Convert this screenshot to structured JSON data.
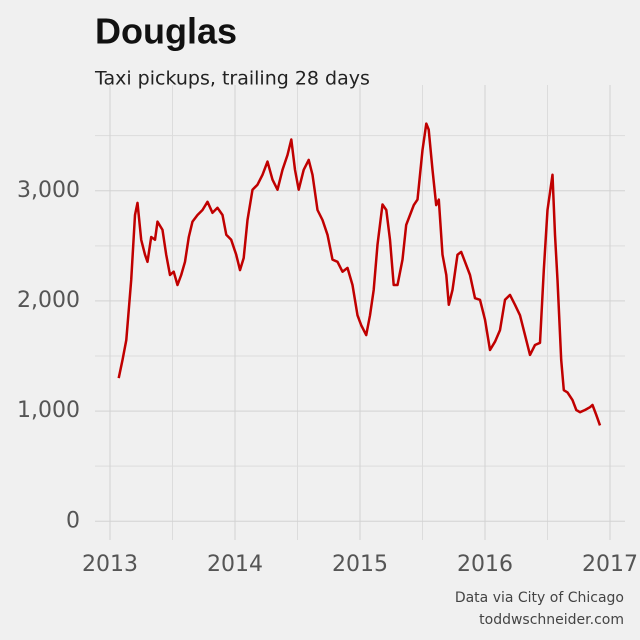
{
  "chart_data": {
    "type": "line",
    "title": "Douglas",
    "subtitle": "Taxi pickups, trailing 28 days",
    "source": "Data via City of Chicago",
    "credit": "toddwschneider.com",
    "xlim": [
      2012.88,
      2017.12
    ],
    "ylim": [
      -170,
      3960
    ],
    "xticks": [
      2013,
      2014,
      2015,
      2016,
      2017
    ],
    "yticks": [
      0,
      {
        "value": 1000,
        "label": "1,000"
      },
      {
        "value": 2000,
        "label": "2,000"
      },
      {
        "value": 3000,
        "label": "3,000"
      }
    ],
    "xminor": [
      2013.5,
      2014.5,
      2015.5,
      2016.5
    ],
    "yminor": [
      500,
      1500,
      2500,
      3500
    ],
    "grid": true,
    "x": [
      2013.07,
      2013.1,
      2013.13,
      2013.17,
      2013.2,
      2013.22,
      2013.25,
      2013.28,
      2013.3,
      2013.33,
      2013.36,
      2013.38,
      2013.42,
      2013.45,
      2013.48,
      2013.51,
      2013.54,
      2013.57,
      2013.6,
      2013.63,
      2013.66,
      2013.7,
      2013.74,
      2013.78,
      2013.82,
      2013.86,
      2013.9,
      2013.93,
      2013.97,
      2014.01,
      2014.04,
      2014.07,
      2014.1,
      2014.14,
      2014.18,
      2014.22,
      2014.26,
      2014.3,
      2014.34,
      2014.38,
      2014.42,
      2014.45,
      2014.48,
      2014.51,
      2014.55,
      2014.59,
      2014.62,
      2014.66,
      2014.7,
      2014.74,
      2014.78,
      2014.82,
      2014.86,
      2014.9,
      2014.94,
      2014.98,
      2015.01,
      2015.05,
      2015.08,
      2015.11,
      2015.14,
      2015.18,
      2015.21,
      2015.24,
      2015.27,
      2015.3,
      2015.34,
      2015.37,
      2015.4,
      2015.43,
      2015.46,
      2015.5,
      2015.53,
      2015.55,
      2015.58,
      2015.61,
      2015.63,
      2015.66,
      2015.69,
      2015.71,
      2015.74,
      2015.78,
      2015.81,
      2015.84,
      2015.88,
      2015.92,
      2015.96,
      2016.0,
      2016.04,
      2016.08,
      2016.12,
      2016.16,
      2016.2,
      2016.24,
      2016.28,
      2016.32,
      2016.36,
      2016.4,
      2016.44,
      2016.47,
      2016.5,
      2016.54,
      2016.56,
      2016.58,
      2016.61,
      2016.63,
      2016.66,
      2016.7,
      2016.73,
      2016.76,
      2016.8,
      2016.84,
      2016.86,
      2016.89,
      2016.92
    ],
    "series": [
      {
        "name": "Douglas",
        "color": "#c00000",
        "values": [
          1300,
          1464,
          1645,
          2190,
          2780,
          2890,
          2555,
          2420,
          2355,
          2580,
          2555,
          2720,
          2645,
          2420,
          2235,
          2265,
          2145,
          2235,
          2355,
          2580,
          2720,
          2780,
          2825,
          2900,
          2800,
          2845,
          2780,
          2600,
          2555,
          2420,
          2280,
          2390,
          2735,
          3010,
          3055,
          3145,
          3265,
          3100,
          3010,
          3190,
          3325,
          3465,
          3190,
          3010,
          3190,
          3280,
          3145,
          2825,
          2735,
          2600,
          2375,
          2355,
          2265,
          2300,
          2145,
          1870,
          1780,
          1690,
          1870,
          2100,
          2510,
          2875,
          2825,
          2555,
          2145,
          2145,
          2375,
          2690,
          2780,
          2870,
          2920,
          3370,
          3610,
          3555,
          3190,
          2870,
          2920,
          2420,
          2235,
          1965,
          2100,
          2420,
          2445,
          2355,
          2235,
          2025,
          2010,
          1830,
          1555,
          1630,
          1735,
          2010,
          2055,
          1965,
          1870,
          1690,
          1510,
          1600,
          1620,
          2280,
          2825,
          3145,
          2600,
          2190,
          1465,
          1190,
          1170,
          1100,
          1010,
          990,
          1010,
          1035,
          1055,
          965,
          870
        ]
      }
    ]
  }
}
